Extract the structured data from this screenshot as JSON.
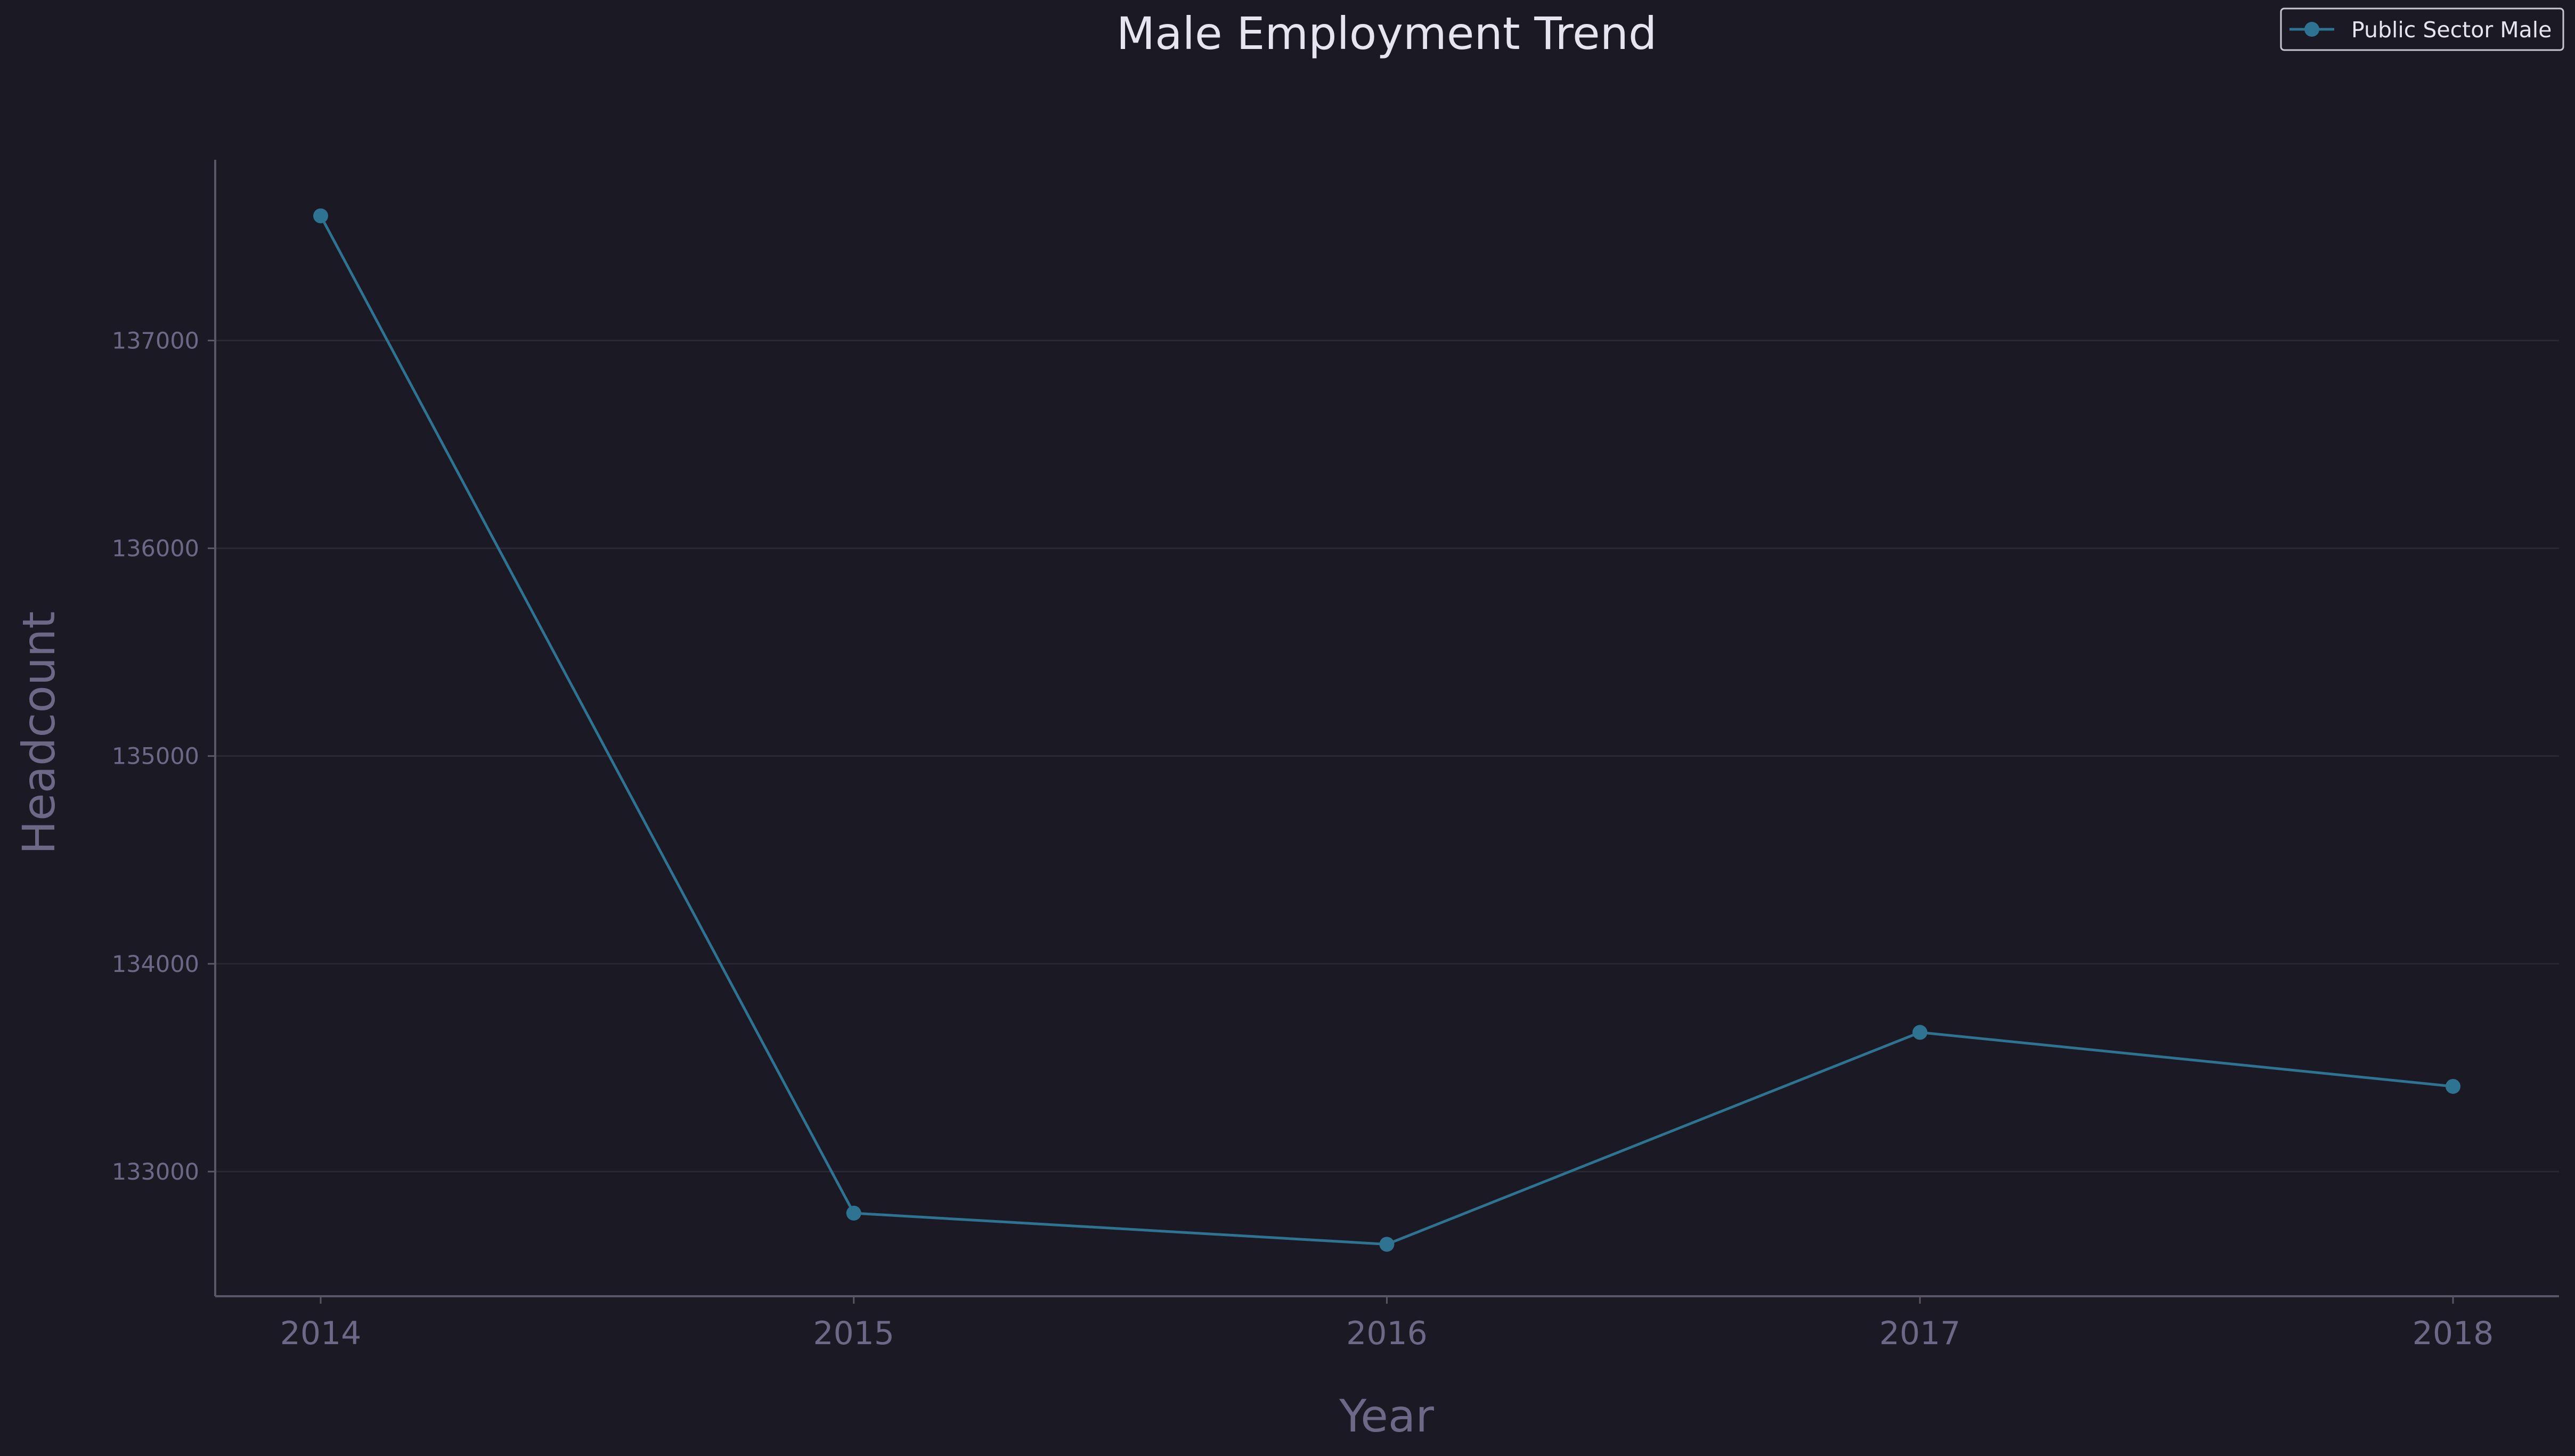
{
  "chart_data": {
    "type": "line",
    "title": "Male Employment Trend",
    "xlabel": "Year",
    "ylabel": "Headcount",
    "x": [
      "2014",
      "2015",
      "2016",
      "2017",
      "2018"
    ],
    "series": [
      {
        "name": "Public Sector Male",
        "values": [
          137600,
          132800,
          132650,
          133670,
          133410
        ],
        "color": "#2e7391"
      }
    ],
    "y_ticks": [
      "133000",
      "134000",
      "135000",
      "136000",
      "137000"
    ],
    "ylim": [
      132400,
      137870
    ],
    "grid": "horizontal",
    "legend_position": "top-right"
  },
  "colors": {
    "background": "#1b1923",
    "title": "#e6e4f0",
    "muted_text": "#6e6887",
    "axis": "#5a5668",
    "grid": "#2a2833",
    "legend_border": "#c9c7d3"
  }
}
